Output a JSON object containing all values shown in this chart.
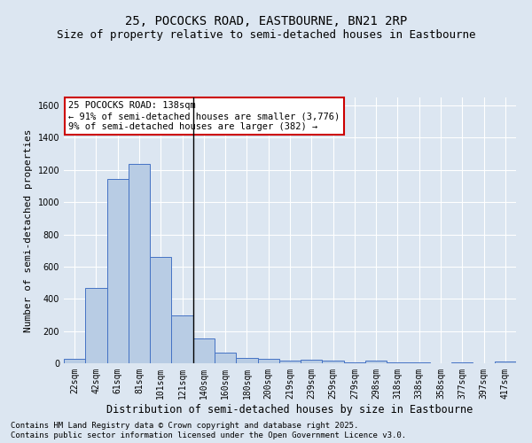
{
  "title": "25, POCOCKS ROAD, EASTBOURNE, BN21 2RP",
  "subtitle": "Size of property relative to semi-detached houses in Eastbourne",
  "xlabel": "Distribution of semi-detached houses by size in Eastbourne",
  "ylabel": "Number of semi-detached properties",
  "categories": [
    "22sqm",
    "42sqm",
    "61sqm",
    "81sqm",
    "101sqm",
    "121sqm",
    "140sqm",
    "160sqm",
    "180sqm",
    "200sqm",
    "219sqm",
    "239sqm",
    "259sqm",
    "279sqm",
    "298sqm",
    "318sqm",
    "338sqm",
    "358sqm",
    "377sqm",
    "397sqm",
    "417sqm"
  ],
  "values": [
    25,
    470,
    1145,
    1235,
    660,
    295,
    155,
    65,
    35,
    30,
    15,
    20,
    15,
    5,
    15,
    5,
    5,
    0,
    5,
    0,
    10
  ],
  "bar_color": "#b8cce4",
  "bar_edge_color": "#4472c4",
  "vline_x_index": 6,
  "annotation_title": "25 POCOCKS ROAD: 138sqm",
  "annotation_line1": "← 91% of semi-detached houses are smaller (3,776)",
  "annotation_line2": "9% of semi-detached houses are larger (382) →",
  "annotation_box_color": "#ffffff",
  "annotation_box_edge": "#cc0000",
  "ylim": [
    0,
    1650
  ],
  "yticks": [
    0,
    200,
    400,
    600,
    800,
    1000,
    1200,
    1400,
    1600
  ],
  "background_color": "#dce6f1",
  "plot_background_color": "#dce6f1",
  "grid_color": "#ffffff",
  "footnote1": "Contains HM Land Registry data © Crown copyright and database right 2025.",
  "footnote2": "Contains public sector information licensed under the Open Government Licence v3.0.",
  "title_fontsize": 10,
  "subtitle_fontsize": 9,
  "xlabel_fontsize": 8.5,
  "ylabel_fontsize": 8,
  "tick_fontsize": 7,
  "annotation_fontsize": 7.5,
  "footnote_fontsize": 6.5
}
